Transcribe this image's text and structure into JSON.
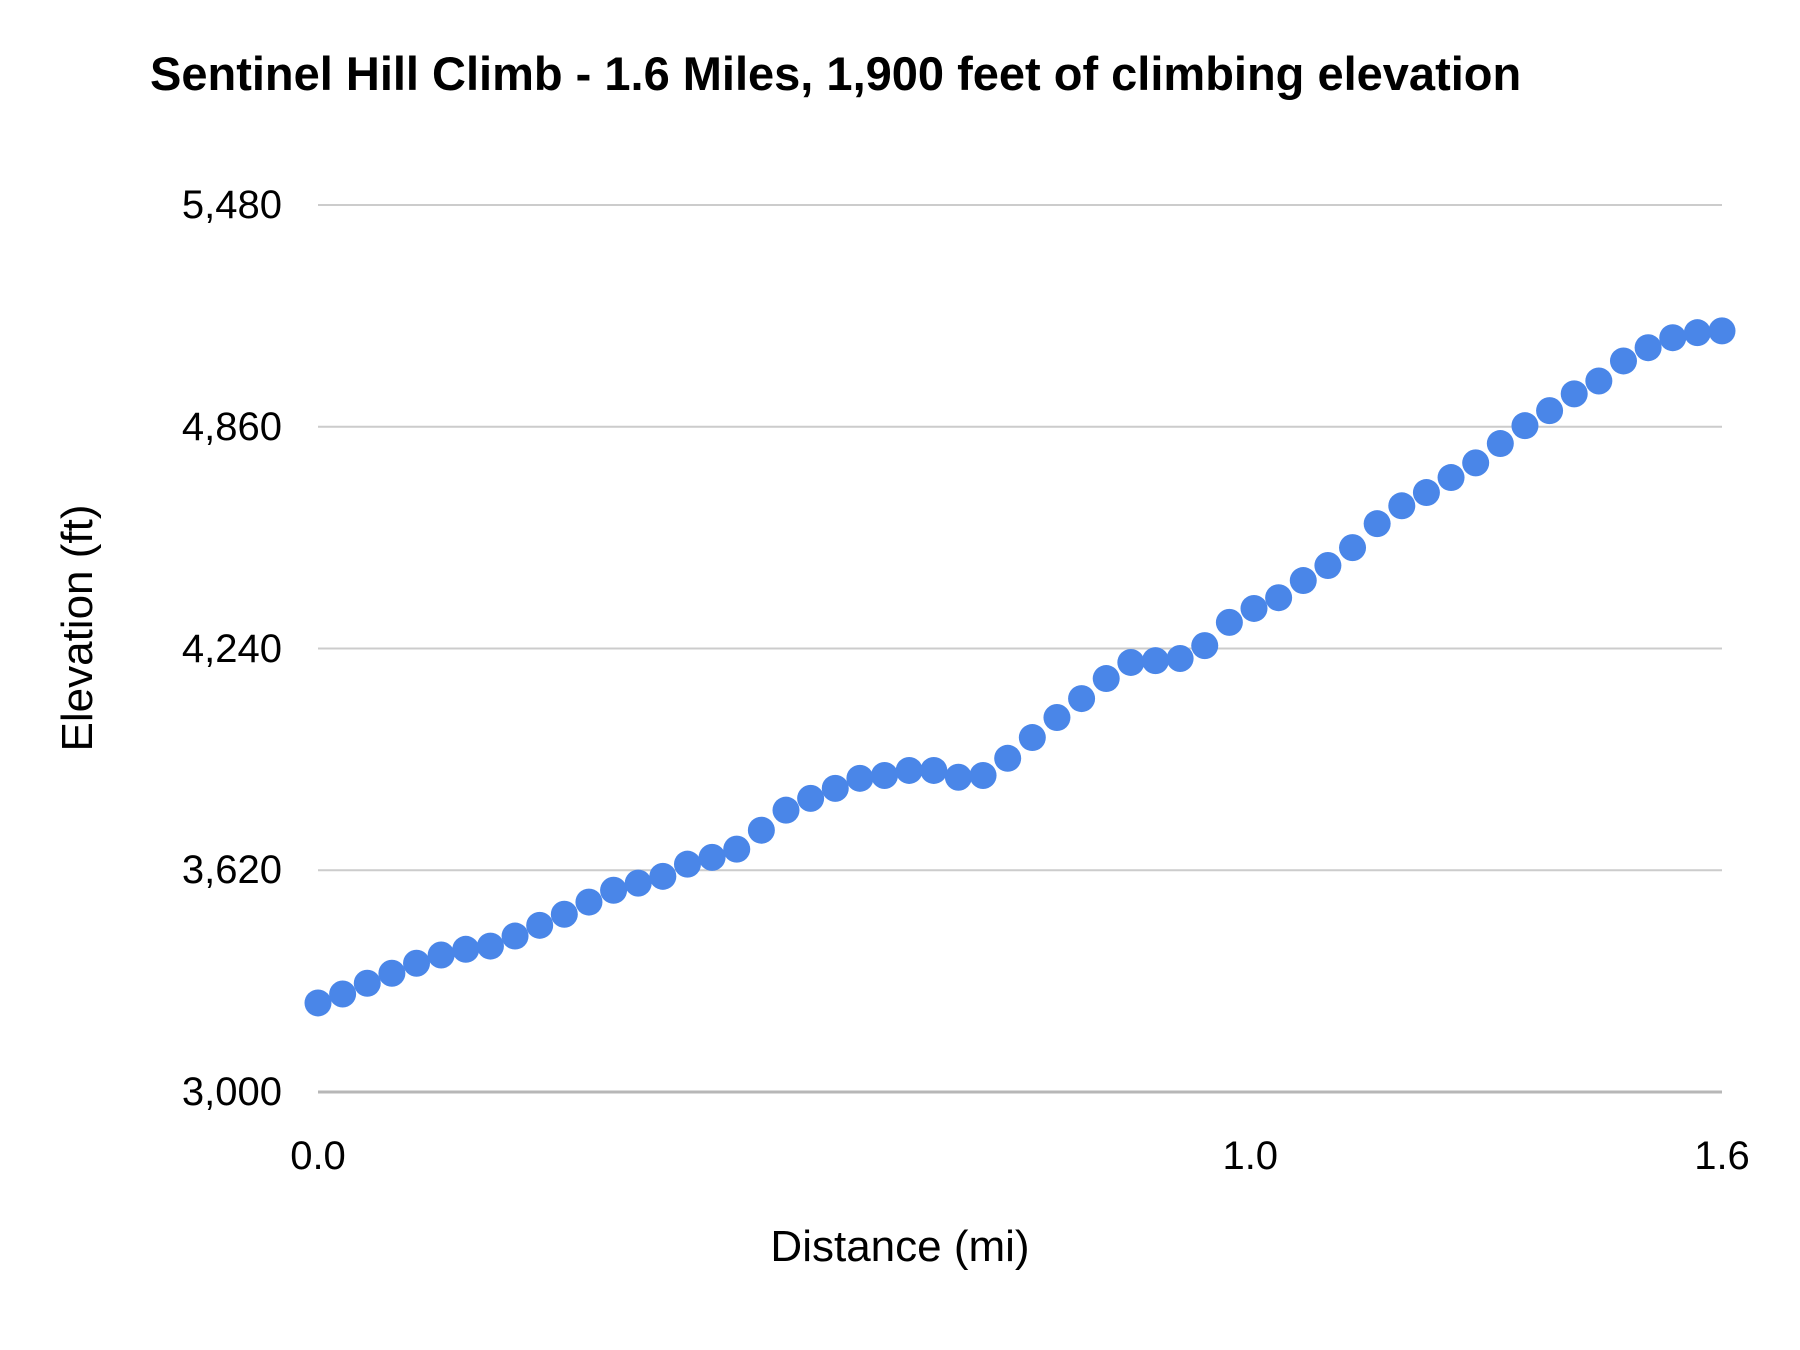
{
  "chart_data": {
    "type": "scatter",
    "title": "Sentinel Hill Climb - 1.6 Miles, 1,900 feet of climbing elevation",
    "xlabel": "Distance (mi)",
    "ylabel": "Elevation (ft)",
    "ylim": [
      3000,
      5480
    ],
    "grid": true,
    "legend_position": "none",
    "point_color": "#4a86e8",
    "gridline_color": "#cccccc",
    "axisline_color": "#b7b7b7",
    "text_color": "#000000",
    "y_ticks": [
      {
        "label": "3,000",
        "value": 3000
      },
      {
        "label": "3,620",
        "value": 3620
      },
      {
        "label": "4,240",
        "value": 4240
      },
      {
        "label": "4,860",
        "value": 4860
      },
      {
        "label": "5,480",
        "value": 5480
      }
    ],
    "x_ticks": [
      {
        "label": "0.0",
        "frac": 0.0
      },
      {
        "label": "1.0",
        "frac": 0.664
      },
      {
        "label": "1.6",
        "frac": 1.0
      }
    ],
    "points": [
      {
        "mi": 0.0,
        "ft": 3249
      },
      {
        "mi": 0.03,
        "ft": 3274
      },
      {
        "mi": 0.05,
        "ft": 3304
      },
      {
        "mi": 0.08,
        "ft": 3332
      },
      {
        "mi": 0.11,
        "ft": 3360
      },
      {
        "mi": 0.13,
        "ft": 3383
      },
      {
        "mi": 0.16,
        "ft": 3399
      },
      {
        "mi": 0.19,
        "ft": 3408
      },
      {
        "mi": 0.21,
        "ft": 3436
      },
      {
        "mi": 0.24,
        "ft": 3466
      },
      {
        "mi": 0.27,
        "ft": 3497
      },
      {
        "mi": 0.29,
        "ft": 3531
      },
      {
        "mi": 0.32,
        "ft": 3564
      },
      {
        "mi": 0.34,
        "ft": 3584
      },
      {
        "mi": 0.37,
        "ft": 3603
      },
      {
        "mi": 0.4,
        "ft": 3637
      },
      {
        "mi": 0.42,
        "ft": 3656
      },
      {
        "mi": 0.45,
        "ft": 3679
      },
      {
        "mi": 0.48,
        "ft": 3732
      },
      {
        "mi": 0.5,
        "ft": 3788
      },
      {
        "mi": 0.53,
        "ft": 3821
      },
      {
        "mi": 0.56,
        "ft": 3849
      },
      {
        "mi": 0.58,
        "ft": 3877
      },
      {
        "mi": 0.61,
        "ft": 3885
      },
      {
        "mi": 0.63,
        "ft": 3899
      },
      {
        "mi": 0.66,
        "ft": 3899
      },
      {
        "mi": 0.69,
        "ft": 3880
      },
      {
        "mi": 0.71,
        "ft": 3885
      },
      {
        "mi": 0.74,
        "ft": 3933
      },
      {
        "mi": 0.77,
        "ft": 3991
      },
      {
        "mi": 0.79,
        "ft": 4047
      },
      {
        "mi": 0.82,
        "ft": 4100
      },
      {
        "mi": 0.85,
        "ft": 4156
      },
      {
        "mi": 0.87,
        "ft": 4201
      },
      {
        "mi": 0.9,
        "ft": 4206
      },
      {
        "mi": 0.92,
        "ft": 4212
      },
      {
        "mi": 0.95,
        "ft": 4248
      },
      {
        "mi": 0.98,
        "ft": 4313
      },
      {
        "mi": 1.0,
        "ft": 4352
      },
      {
        "mi": 1.04,
        "ft": 4382
      },
      {
        "mi": 1.07,
        "ft": 4430
      },
      {
        "mi": 1.1,
        "ft": 4472
      },
      {
        "mi": 1.13,
        "ft": 4522
      },
      {
        "mi": 1.16,
        "ft": 4589
      },
      {
        "mi": 1.19,
        "ft": 4639
      },
      {
        "mi": 1.23,
        "ft": 4676
      },
      {
        "mi": 1.26,
        "ft": 4718
      },
      {
        "mi": 1.29,
        "ft": 4759
      },
      {
        "mi": 1.32,
        "ft": 4813
      },
      {
        "mi": 1.35,
        "ft": 4863
      },
      {
        "mi": 1.38,
        "ft": 4905
      },
      {
        "mi": 1.41,
        "ft": 4952
      },
      {
        "mi": 1.44,
        "ft": 4988
      },
      {
        "mi": 1.48,
        "ft": 5044
      },
      {
        "mi": 1.51,
        "ft": 5081
      },
      {
        "mi": 1.54,
        "ft": 5109
      },
      {
        "mi": 1.57,
        "ft": 5123
      },
      {
        "mi": 1.6,
        "ft": 5128
      }
    ]
  }
}
